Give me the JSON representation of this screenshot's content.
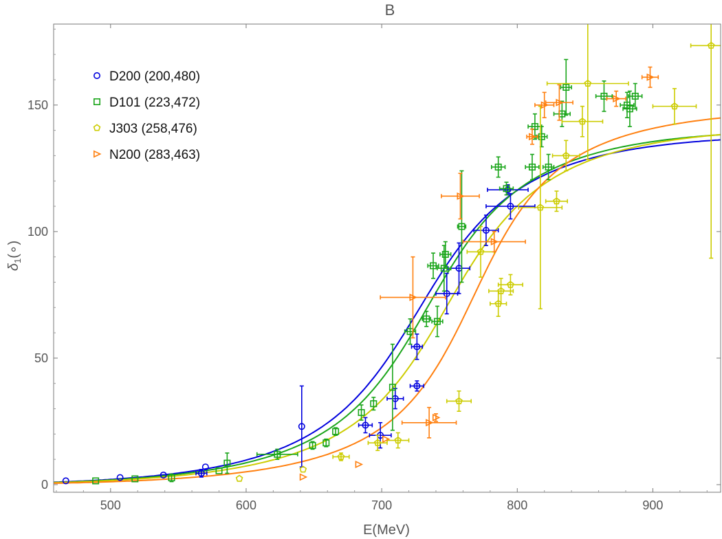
{
  "chart_data": {
    "type": "scatter",
    "title": "B",
    "xlabel": "E(MeV)",
    "ylabel": "δ1(∘)",
    "ylabel_parts": {
      "main": "δ",
      "sub": "1",
      "rest": "(∘)"
    },
    "xlim": [
      458,
      950
    ],
    "ylim": [
      -3,
      182
    ],
    "xticks": [
      500,
      600,
      700,
      800,
      900
    ],
    "yticks": [
      0,
      50,
      100,
      150
    ],
    "legend_position": "top-left",
    "series": [
      {
        "name": "D200 (200,480)",
        "color": "#0000dd",
        "marker": "circle",
        "fit": {
          "mass": 752,
          "width": 150
        },
        "points": [
          {
            "x": 467,
            "y": 1.5,
            "xerr": 0,
            "yerr": 0
          },
          {
            "x": 507,
            "y": 2.8,
            "xerr": 0,
            "yerr": 0
          },
          {
            "x": 539,
            "y": 3.8,
            "xerr": 0,
            "yerr": 0
          },
          {
            "x": 567,
            "y": 4.5,
            "xerr": 4,
            "yerr": 1.5
          },
          {
            "x": 570,
            "y": 7,
            "xerr": 0,
            "yerr": 0
          },
          {
            "x": 641,
            "y": 23,
            "xerr": 0,
            "yerr": 16
          },
          {
            "x": 688,
            "y": 23.5,
            "xerr": 5,
            "yerr": 3
          },
          {
            "x": 699,
            "y": 19.5,
            "xerr": 8,
            "yerr": 5
          },
          {
            "x": 710,
            "y": 34,
            "xerr": 6,
            "yerr": 4
          },
          {
            "x": 726,
            "y": 39,
            "xerr": 5,
            "yerr": 2
          },
          {
            "x": 726,
            "y": 54.5,
            "xerr": 4,
            "yerr": 5
          },
          {
            "x": 748,
            "y": 75.5,
            "xerr": 8,
            "yerr": 8
          },
          {
            "x": 757,
            "y": 85.5,
            "xerr": 8,
            "yerr": 10
          },
          {
            "x": 777,
            "y": 100.5,
            "xerr": 9,
            "yerr": 6
          },
          {
            "x": 793,
            "y": 116.5,
            "xerr": 15,
            "yerr": 2
          },
          {
            "x": 795,
            "y": 110,
            "xerr": 18,
            "yerr": 5
          }
        ]
      },
      {
        "name": "D101 (223,472)",
        "color": "#1aa51a",
        "marker": "square",
        "fit": {
          "mass": 756,
          "width": 140
        },
        "points": [
          {
            "x": 489,
            "y": 1.5,
            "xerr": 0,
            "yerr": 0
          },
          {
            "x": 518,
            "y": 2.3,
            "xerr": 0,
            "yerr": 0
          },
          {
            "x": 545,
            "y": 2.7,
            "xerr": 0,
            "yerr": 1.5
          },
          {
            "x": 580,
            "y": 5.5,
            "xerr": 0,
            "yerr": 0
          },
          {
            "x": 586,
            "y": 8.5,
            "xerr": 0,
            "yerr": 4
          },
          {
            "x": 623,
            "y": 12,
            "xerr": 15,
            "yerr": 2
          },
          {
            "x": 649,
            "y": 15.5,
            "xerr": 0,
            "yerr": 1.5
          },
          {
            "x": 659,
            "y": 16.5,
            "xerr": 0,
            "yerr": 1.5
          },
          {
            "x": 666,
            "y": 21,
            "xerr": 0,
            "yerr": 1.5
          },
          {
            "x": 685,
            "y": 28.5,
            "xerr": 0,
            "yerr": 3
          },
          {
            "x": 694,
            "y": 32,
            "xerr": 0,
            "yerr": 2.5
          },
          {
            "x": 708,
            "y": 38.5,
            "xerr": 0,
            "yerr": 17
          },
          {
            "x": 721,
            "y": 60.5,
            "xerr": 4,
            "yerr": 5
          },
          {
            "x": 733,
            "y": 65.5,
            "xerr": 3,
            "yerr": 3
          },
          {
            "x": 738,
            "y": 86.5,
            "xerr": 4,
            "yerr": 5
          },
          {
            "x": 741,
            "y": 64.5,
            "xerr": 4,
            "yerr": 6
          },
          {
            "x": 747,
            "y": 91,
            "xerr": 4,
            "yerr": 5
          },
          {
            "x": 746,
            "y": 85.5,
            "xerr": 5,
            "yerr": 9
          },
          {
            "x": 759,
            "y": 102,
            "xerr": 3,
            "yerr": 22
          },
          {
            "x": 786,
            "y": 125.5,
            "xerr": 5,
            "yerr": 4
          },
          {
            "x": 792,
            "y": 117,
            "xerr": 5,
            "yerr": 2.5
          },
          {
            "x": 811,
            "y": 125.5,
            "xerr": 5,
            "yerr": 5
          },
          {
            "x": 813,
            "y": 141.5,
            "xerr": 5,
            "yerr": 5
          },
          {
            "x": 818,
            "y": 137.5,
            "xerr": 4,
            "yerr": 4
          },
          {
            "x": 823,
            "y": 125.5,
            "xerr": 4,
            "yerr": 5
          },
          {
            "x": 833,
            "y": 146.5,
            "xerr": 6,
            "yerr": 5
          },
          {
            "x": 836,
            "y": 157,
            "xerr": 4,
            "yerr": 11
          },
          {
            "x": 864,
            "y": 153.5,
            "xerr": 6,
            "yerr": 6
          },
          {
            "x": 881,
            "y": 150,
            "xerr": 5,
            "yerr": 5
          },
          {
            "x": 883,
            "y": 148.5,
            "xerr": 5,
            "yerr": 7
          },
          {
            "x": 887,
            "y": 153.5,
            "xerr": 5,
            "yerr": 5
          }
        ]
      },
      {
        "name": "J303 (258,476)",
        "color": "#cccc00",
        "marker": "pentagon",
        "fit": {
          "mass": 770,
          "width": 140
        },
        "points": [
          {
            "x": 595,
            "y": 2.4,
            "xerr": 0,
            "yerr": 0
          },
          {
            "x": 642,
            "y": 6,
            "xerr": 0,
            "yerr": 0
          },
          {
            "x": 670,
            "y": 11,
            "xerr": 6,
            "yerr": 1.5
          },
          {
            "x": 697,
            "y": 16.5,
            "xerr": 7,
            "yerr": 3
          },
          {
            "x": 712,
            "y": 17.5,
            "xerr": 8,
            "yerr": 3
          },
          {
            "x": 757,
            "y": 33,
            "xerr": 9,
            "yerr": 4
          },
          {
            "x": 773,
            "y": 92,
            "xerr": 10,
            "yerr": 10
          },
          {
            "x": 786,
            "y": 71.5,
            "xerr": 6,
            "yerr": 5
          },
          {
            "x": 788,
            "y": 76.5,
            "xerr": 9,
            "yerr": 5
          },
          {
            "x": 795,
            "y": 79,
            "xerr": 9,
            "yerr": 4
          },
          {
            "x": 817,
            "y": 109.5,
            "xerr": 16,
            "yerr": 40
          },
          {
            "x": 829,
            "y": 112,
            "xerr": 8,
            "yerr": 4
          },
          {
            "x": 836,
            "y": 130,
            "xerr": 10,
            "yerr": 6
          },
          {
            "x": 848,
            "y": 143.5,
            "xerr": 15,
            "yerr": 6
          },
          {
            "x": 852,
            "y": 158.5,
            "xerr": 30,
            "yerr": 30
          },
          {
            "x": 916,
            "y": 149.5,
            "xerr": 16,
            "yerr": 7
          },
          {
            "x": 943,
            "y": 173.5,
            "xerr": 15,
            "yerr": 84
          }
        ]
      },
      {
        "name": "N200 (283,463)",
        "color": "#ff7f0e",
        "marker": "triangle-right",
        "fit": {
          "mass": 782,
          "width": 110
        },
        "points": [
          {
            "x": 642,
            "y": 3,
            "xerr": 0,
            "yerr": 0
          },
          {
            "x": 683,
            "y": 8,
            "xerr": 0,
            "yerr": 0
          },
          {
            "x": 703,
            "y": 18,
            "xerr": 0,
            "yerr": 0
          },
          {
            "x": 723,
            "y": 74,
            "xerr": 24,
            "yerr": 16
          },
          {
            "x": 735,
            "y": 24.5,
            "xerr": 20,
            "yerr": 6
          },
          {
            "x": 740,
            "y": 26.5,
            "xerr": 0,
            "yerr": 1.5
          },
          {
            "x": 758,
            "y": 114,
            "xerr": 14,
            "yerr": 9
          },
          {
            "x": 783,
            "y": 96,
            "xerr": 23,
            "yerr": 4
          },
          {
            "x": 811,
            "y": 137.5,
            "xerr": 4,
            "yerr": 3
          },
          {
            "x": 820,
            "y": 150,
            "xerr": 7,
            "yerr": 5
          },
          {
            "x": 831,
            "y": 151,
            "xerr": 10,
            "yerr": 7
          },
          {
            "x": 873,
            "y": 152.5,
            "xerr": 7,
            "yerr": 3
          },
          {
            "x": 898,
            "y": 161,
            "xerr": 6,
            "yerr": 4
          }
        ]
      }
    ]
  }
}
